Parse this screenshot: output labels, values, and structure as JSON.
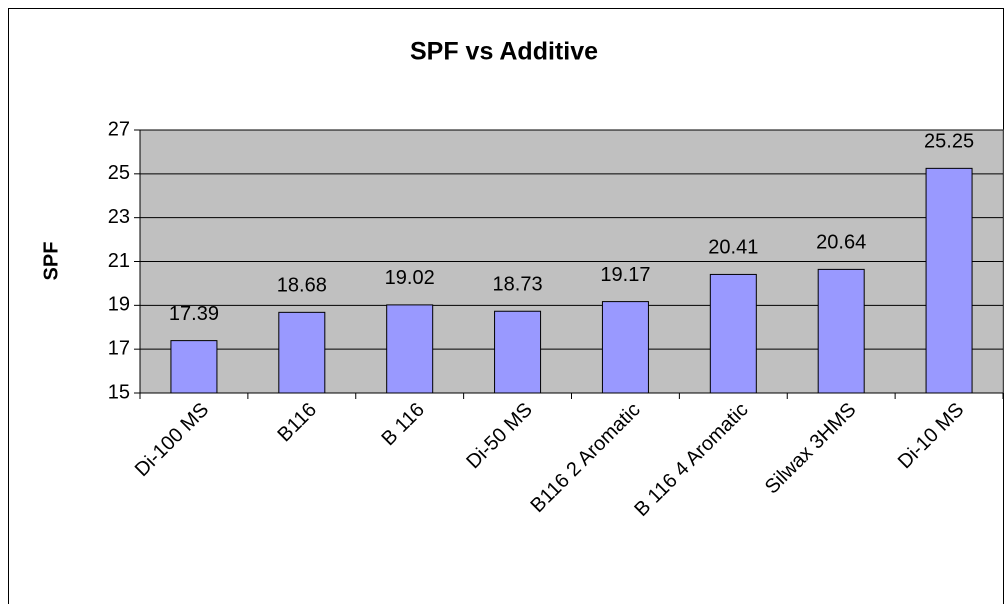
{
  "chart_data": {
    "type": "bar",
    "title": "SPF vs Additive",
    "y_label": "SPF",
    "categories": [
      "Di-100 MS",
      "B116",
      "B 116",
      "Di-50 MS",
      "B116 2 Aromatic",
      "B 116 4 Aromatic",
      "Silwax 3HMS",
      "Di-10 MS"
    ],
    "values": [
      17.39,
      18.68,
      19.02,
      18.73,
      19.17,
      20.41,
      20.64,
      25.25
    ],
    "color": "#9999ff",
    "ylim": [
      15,
      27
    ],
    "yticks": [
      15,
      17,
      19,
      21,
      23,
      25,
      27
    ],
    "grid": true
  }
}
